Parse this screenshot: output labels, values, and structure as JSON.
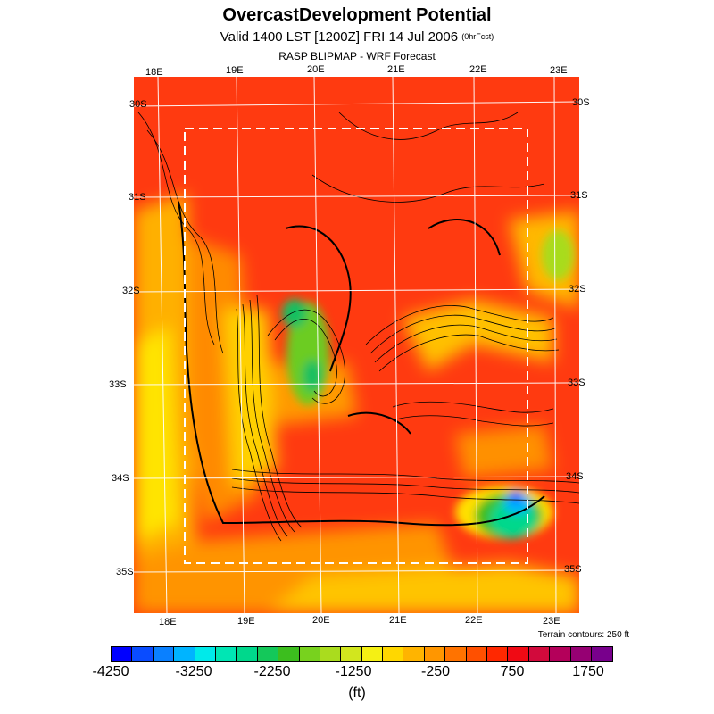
{
  "header": {
    "title": "OvercastDevelopment Potential",
    "subtitle": "Valid 1400 LST [1200Z] FRI 14 Jul 2006",
    "forecast_tag": "(0hrFcst)",
    "source": "RASP BLIPMAP - WRF Forecast"
  },
  "axes": {
    "lon_top": [
      "18E",
      "19E",
      "20E",
      "21E",
      "22E",
      "23E"
    ],
    "lon_bottom": [
      "18E",
      "19E",
      "20E",
      "21E",
      "22E",
      "23E"
    ],
    "lat_left": [
      "30S",
      "31S",
      "32S",
      "33S",
      "34S",
      "35S"
    ],
    "lat_right": [
      "30S",
      "31S",
      "32S",
      "33S",
      "34S",
      "35S"
    ]
  },
  "terrain_note": "Terrain contours: 250 ft",
  "colorbar": {
    "colors": [
      "#0000ff",
      "#0a4cff",
      "#0a80ff",
      "#00b4ff",
      "#00eaea",
      "#00e6b4",
      "#00d88c",
      "#14c85a",
      "#3cbe1e",
      "#78d21e",
      "#aadc1e",
      "#d2e61e",
      "#f5f014",
      "#ffd700",
      "#ffb400",
      "#ff9600",
      "#ff7300",
      "#ff5000",
      "#ff2800",
      "#f00a14",
      "#d20a3c",
      "#b4005a",
      "#960073",
      "#78008c"
    ],
    "tick_labels": [
      "-4250",
      "-3250",
      "-2250",
      "-1250",
      "-250",
      "750",
      "1750"
    ],
    "units": "(ft)"
  }
}
